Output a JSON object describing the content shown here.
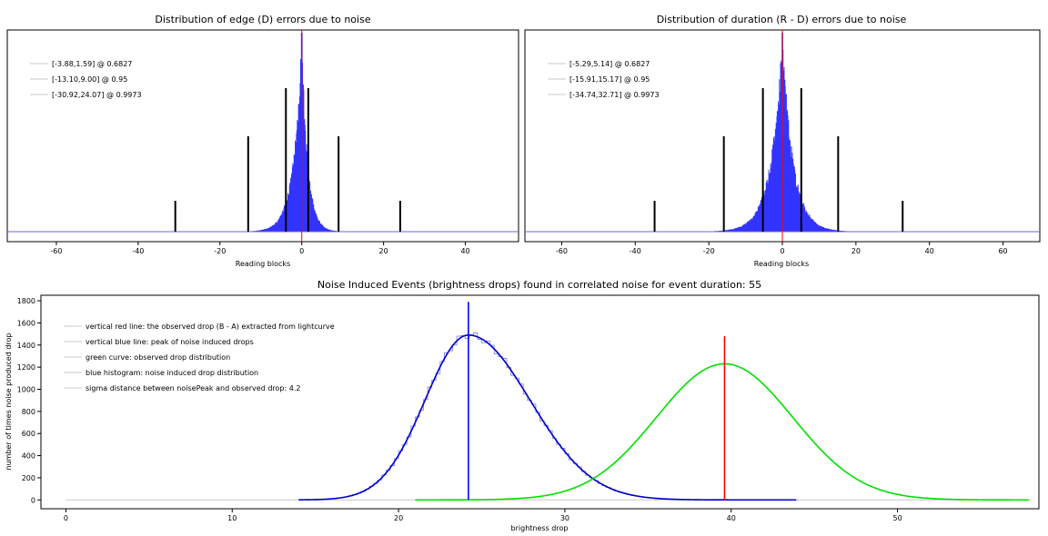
{
  "chart_data": [
    {
      "type": "histogram",
      "title": "Distribution of edge (D) errors due to noise",
      "xlabel": "Reading blocks",
      "ylabel": "",
      "xlim": [
        -72,
        53
      ],
      "x_ticks": [
        -60,
        -40,
        -20,
        0,
        20,
        40
      ],
      "grid": false,
      "legend_position": "top-left",
      "legend": [
        "[-3.88,1.59] @ 0.6827",
        "[-13.10,9.00] @ 0.95",
        "[-30.92,24.07] @ 0.9973"
      ],
      "histogram_color": "#3333ff",
      "peak_line_x": 0,
      "peak_line_color": "#ff0000",
      "distribution": {
        "center": 0,
        "left_scale": 2.1,
        "right_scale": 1.5
      },
      "intervals": [
        {
          "confidence": 0.6827,
          "low": -3.88,
          "high": 1.59
        },
        {
          "confidence": 0.95,
          "low": -13.1,
          "high": 9.0
        },
        {
          "confidence": 0.9973,
          "low": -30.92,
          "high": 24.07
        }
      ]
    },
    {
      "type": "histogram",
      "title": "Distribution of duration (R - D) errors due to noise",
      "xlabel": "Reading blocks",
      "ylabel": "",
      "xlim": [
        -70,
        70
      ],
      "x_ticks": [
        -60,
        -40,
        -20,
        0,
        20,
        40,
        60
      ],
      "grid": false,
      "legend_position": "top-left",
      "legend": [
        "[-5.29,5.14] @ 0.6827",
        "[-15.91,15.17] @ 0.95",
        "[-34.74,32.71] @ 0.9973"
      ],
      "histogram_color": "#3333ff",
      "peak_line_x": 0,
      "peak_line_color": "#ff0000",
      "distribution": {
        "center": 0,
        "left_scale": 3.2,
        "right_scale": 3.0
      },
      "intervals": [
        {
          "confidence": 0.6827,
          "low": -5.29,
          "high": 5.14
        },
        {
          "confidence": 0.95,
          "low": -15.91,
          "high": 15.17
        },
        {
          "confidence": 0.9973,
          "low": -34.74,
          "high": 32.71
        }
      ]
    },
    {
      "type": "histogram",
      "title": "Noise Induced Events (brightness drops) found in correlated noise for event duration: 55",
      "xlabel": "brightness drop",
      "ylabel": "number of times noise produced drop",
      "xlim": [
        -1.5,
        58.5
      ],
      "ylim": [
        -80,
        1850
      ],
      "x_ticks": [
        0,
        10,
        20,
        30,
        40,
        50
      ],
      "y_ticks": [
        0,
        200,
        400,
        600,
        800,
        1000,
        1200,
        1400,
        1600,
        1800
      ],
      "grid": false,
      "legend_position": "top-left",
      "legend": [
        "vertical red line: the observed drop (B - A) extracted from lightcurve",
        "vertical blue line: peak of noise induced drops",
        "green curve: observed drop distribution",
        "blue histogram: noise induced drop distribution",
        "sigma distance between noisePeak and observed drop: 4.2"
      ],
      "observed_drop": {
        "x": 39.6,
        "line_top": 1480,
        "color": "#ff0000"
      },
      "noise_peak": {
        "x": 24.2,
        "line_top": 1790,
        "color": "#0000ff"
      },
      "noise_distribution": {
        "peak_x": 24.2,
        "peak_y": 1490,
        "sigma_left": 2.6,
        "sigma_right": 3.7,
        "x_range": [
          14,
          44
        ],
        "color": "#0000cc"
      },
      "observed_distribution": {
        "mean": 39.6,
        "sigma": 4.1,
        "peak_y": 1230,
        "x_range": [
          21,
          58
        ],
        "color": "#00e000"
      },
      "baseline_x_range": [
        0,
        58
      ]
    }
  ]
}
